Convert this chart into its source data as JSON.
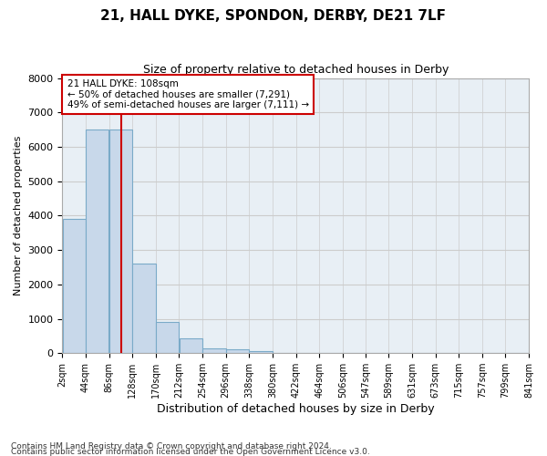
{
  "title": "21, HALL DYKE, SPONDON, DERBY, DE21 7LF",
  "subtitle": "Size of property relative to detached houses in Derby",
  "xlabel": "Distribution of detached houses by size in Derby",
  "ylabel": "Number of detached properties",
  "footnote1": "Contains HM Land Registry data © Crown copyright and database right 2024.",
  "footnote2": "Contains public sector information licensed under the Open Government Licence v3.0.",
  "bin_edges": [
    2,
    44,
    86,
    128,
    170,
    212,
    254,
    296,
    338,
    380,
    422,
    464,
    506,
    547,
    589,
    631,
    673,
    715,
    757,
    799,
    841
  ],
  "bin_labels": [
    "2sqm",
    "44sqm",
    "86sqm",
    "128sqm",
    "170sqm",
    "212sqm",
    "254sqm",
    "296sqm",
    "338sqm",
    "380sqm",
    "422sqm",
    "464sqm",
    "506sqm",
    "547sqm",
    "589sqm",
    "631sqm",
    "673sqm",
    "715sqm",
    "757sqm",
    "799sqm",
    "841sqm"
  ],
  "bar_heights": [
    3900,
    6500,
    6500,
    2600,
    900,
    420,
    150,
    100,
    50,
    0,
    0,
    0,
    0,
    0,
    0,
    0,
    0,
    0,
    0,
    0
  ],
  "bar_color": "#c8d8ea",
  "bar_edgecolor": "#7aaac8",
  "grid_color": "#cccccc",
  "background_color": "#e8eff5",
  "vline_color": "#cc0000",
  "vline_x": 108,
  "annotation_text": "21 HALL DYKE: 108sqm\n← 50% of detached houses are smaller (7,291)\n49% of semi-detached houses are larger (7,111) →",
  "annotation_box_color": "#cc0000",
  "ylim": [
    0,
    8000
  ],
  "yticks": [
    0,
    1000,
    2000,
    3000,
    4000,
    5000,
    6000,
    7000,
    8000
  ]
}
